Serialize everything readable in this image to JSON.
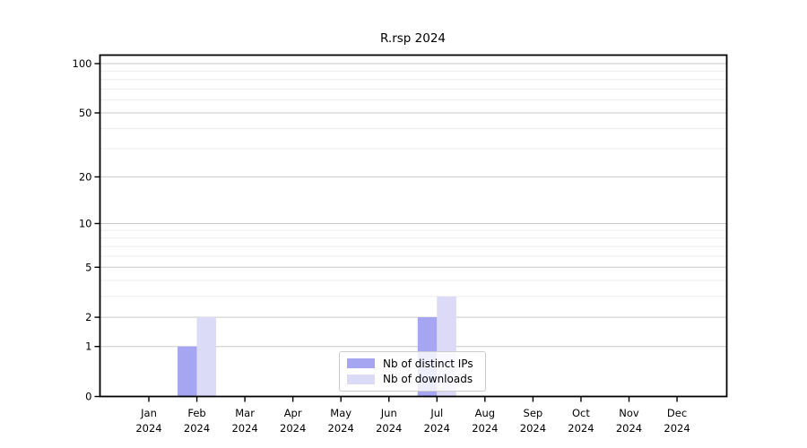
{
  "chart_data": {
    "type": "bar",
    "title": "R.rsp 2024",
    "categories": [
      "Jan",
      "Feb",
      "Mar",
      "Apr",
      "May",
      "Jun",
      "Jul",
      "Aug",
      "Sep",
      "Oct",
      "Nov",
      "Dec"
    ],
    "year": "2024",
    "series": [
      {
        "name": "Nb of distinct IPs",
        "color": "#a5a5f1",
        "values": [
          0,
          1,
          0,
          0,
          0,
          0,
          2,
          0,
          0,
          0,
          0,
          0
        ]
      },
      {
        "name": "Nb of downloads",
        "color": "#dbdbf8",
        "values": [
          0,
          2,
          0,
          0,
          0,
          0,
          3,
          0,
          0,
          0,
          0,
          0
        ]
      }
    ],
    "y_scale": "log1p",
    "y_ticks": [
      0,
      1,
      2,
      5,
      10,
      20,
      50,
      100
    ],
    "y_minor_gridlines": [
      3,
      4,
      6,
      7,
      8,
      9,
      30,
      40,
      60,
      70,
      80,
      90
    ],
    "ylim": [
      0,
      100
    ],
    "grid": true,
    "legend_position": "lower center",
    "colors": {
      "axis": "#000000",
      "grid_major": "#c9c9c9",
      "grid_minor": "#ededed",
      "text": "#000000"
    }
  }
}
